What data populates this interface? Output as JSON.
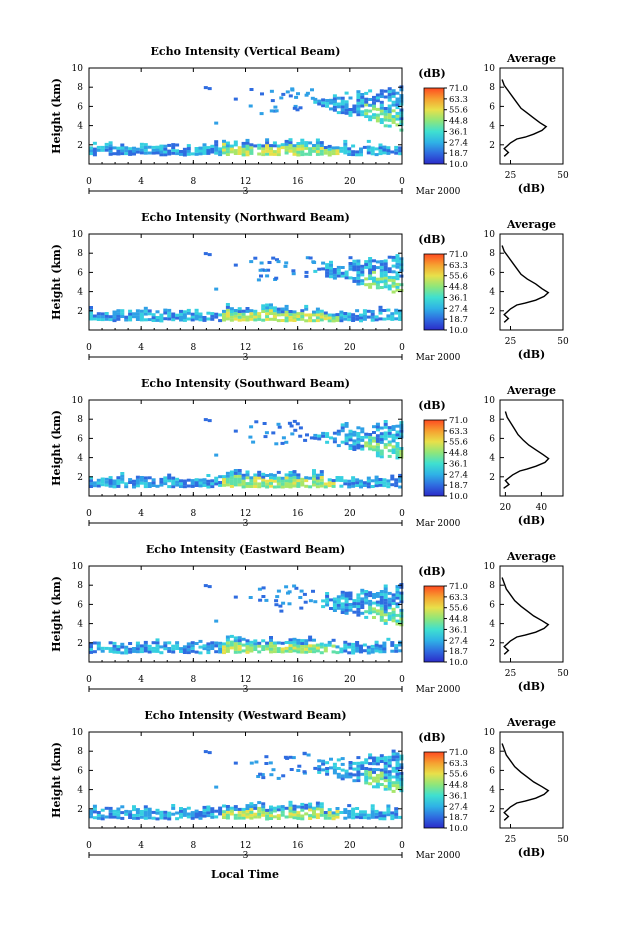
{
  "colorbar": {
    "unit": "(dB)",
    "ticks": [
      "71.0",
      "63.3",
      "55.6",
      "44.8",
      "36.1",
      "27.4",
      "18.7",
      "10.0"
    ],
    "stops": [
      "#2b2bc8",
      "#2f6ce0",
      "#2fb3e6",
      "#3fe0d0",
      "#8fe67a",
      "#e8e04a",
      "#f6a030",
      "#ff4a20"
    ]
  },
  "chart_data": [
    {
      "type": "heatmap",
      "title": "Echo Intensity (Vertical Beam)",
      "ylabel": "Height (km)",
      "xticks": [
        "0",
        "4",
        "8",
        "12",
        "16",
        "20",
        "0"
      ],
      "yticks": [
        "2",
        "4",
        "6",
        "8",
        "10"
      ],
      "xlim": [
        0,
        24
      ],
      "ylim": [
        0,
        10
      ],
      "date_center": "3",
      "date_label": "Mar 2000",
      "profile": {
        "title": "Average",
        "xlabel": "(dB)",
        "xticks": [
          "25",
          "50"
        ],
        "xlim": [
          20,
          50
        ],
        "points": [
          [
            22,
            0.8
          ],
          [
            24,
            1.2
          ],
          [
            22,
            1.6
          ],
          [
            25,
            2.2
          ],
          [
            28,
            2.6
          ],
          [
            32,
            2.8
          ],
          [
            36,
            3.1
          ],
          [
            40,
            3.5
          ],
          [
            42,
            3.9
          ],
          [
            39,
            4.3
          ],
          [
            36,
            4.8
          ],
          [
            33,
            5.3
          ],
          [
            30,
            5.8
          ],
          [
            28,
            6.4
          ],
          [
            26,
            7.0
          ],
          [
            24,
            7.6
          ],
          [
            22,
            8.2
          ],
          [
            21,
            8.8
          ]
        ]
      }
    },
    {
      "type": "heatmap",
      "title": "Echo Intensity (Northward Beam)",
      "ylabel": "Height (km)",
      "xticks": [
        "0",
        "4",
        "8",
        "12",
        "16",
        "20",
        "0"
      ],
      "yticks": [
        "2",
        "4",
        "6",
        "8",
        "10"
      ],
      "xlim": [
        0,
        24
      ],
      "ylim": [
        0,
        10
      ],
      "date_center": "3",
      "date_label": "Mar 2000",
      "profile": {
        "title": "Average",
        "xlabel": "(dB)",
        "xticks": [
          "25",
          "50"
        ],
        "xlim": [
          20,
          50
        ],
        "points": [
          [
            22,
            0.8
          ],
          [
            24,
            1.2
          ],
          [
            22,
            1.6
          ],
          [
            25,
            2.2
          ],
          [
            28,
            2.6
          ],
          [
            32,
            2.8
          ],
          [
            37,
            3.1
          ],
          [
            41,
            3.5
          ],
          [
            43,
            3.9
          ],
          [
            40,
            4.3
          ],
          [
            37,
            4.8
          ],
          [
            33,
            5.3
          ],
          [
            30,
            5.8
          ],
          [
            28,
            6.4
          ],
          [
            26,
            7.0
          ],
          [
            24,
            7.6
          ],
          [
            22,
            8.2
          ],
          [
            21,
            8.8
          ]
        ]
      }
    },
    {
      "type": "heatmap",
      "title": "Echo Intensity (Southward Beam)",
      "ylabel": "Height (km)",
      "xticks": [
        "0",
        "4",
        "8",
        "12",
        "16",
        "20",
        "0"
      ],
      "yticks": [
        "2",
        "4",
        "6",
        "8",
        "10"
      ],
      "xlim": [
        0,
        24
      ],
      "ylim": [
        0,
        10
      ],
      "date_center": "3",
      "date_label": "Mar 2000",
      "profile": {
        "title": "Average",
        "xlabel": "(dB)",
        "xticks": [
          "20",
          "40"
        ],
        "xlim": [
          17,
          52
        ],
        "points": [
          [
            19,
            0.8
          ],
          [
            22,
            1.2
          ],
          [
            20,
            1.6
          ],
          [
            24,
            2.2
          ],
          [
            28,
            2.6
          ],
          [
            32,
            2.8
          ],
          [
            37,
            3.1
          ],
          [
            42,
            3.5
          ],
          [
            44,
            3.9
          ],
          [
            41,
            4.3
          ],
          [
            37,
            4.8
          ],
          [
            33,
            5.3
          ],
          [
            30,
            5.8
          ],
          [
            27,
            6.4
          ],
          [
            25,
            7.0
          ],
          [
            23,
            7.6
          ],
          [
            21,
            8.2
          ],
          [
            20,
            8.8
          ]
        ]
      }
    },
    {
      "type": "heatmap",
      "title": "Echo Intensity (Eastward Beam)",
      "ylabel": "Height (km)",
      "xticks": [
        "0",
        "4",
        "8",
        "12",
        "16",
        "20",
        "0"
      ],
      "yticks": [
        "2",
        "4",
        "6",
        "8",
        "10"
      ],
      "xlim": [
        0,
        24
      ],
      "ylim": [
        0,
        10
      ],
      "date_center": "3",
      "date_label": "Mar 2000",
      "profile": {
        "title": "Average",
        "xlabel": "(dB)",
        "xticks": [
          "25",
          "50"
        ],
        "xlim": [
          20,
          50
        ],
        "points": [
          [
            22,
            0.8
          ],
          [
            24,
            1.2
          ],
          [
            22,
            1.6
          ],
          [
            25,
            2.2
          ],
          [
            28,
            2.6
          ],
          [
            32,
            2.8
          ],
          [
            37,
            3.1
          ],
          [
            41,
            3.5
          ],
          [
            43,
            3.9
          ],
          [
            40,
            4.3
          ],
          [
            36,
            4.8
          ],
          [
            33,
            5.3
          ],
          [
            30,
            5.8
          ],
          [
            27,
            6.4
          ],
          [
            25,
            7.0
          ],
          [
            23,
            7.6
          ],
          [
            22,
            8.2
          ],
          [
            21,
            8.8
          ]
        ]
      }
    },
    {
      "type": "heatmap",
      "title": "Echo Intensity (Westward Beam)",
      "ylabel": "Height (km)",
      "xticks": [
        "0",
        "4",
        "8",
        "12",
        "16",
        "20",
        "0"
      ],
      "yticks": [
        "2",
        "4",
        "6",
        "8",
        "10"
      ],
      "xlim": [
        0,
        24
      ],
      "ylim": [
        0,
        10
      ],
      "date_center": "3",
      "date_label": "Mar 2000",
      "profile": {
        "title": "Average",
        "xlabel": "(dB)",
        "xticks": [
          "25",
          "50"
        ],
        "xlim": [
          20,
          50
        ],
        "points": [
          [
            22,
            0.8
          ],
          [
            24,
            1.2
          ],
          [
            22,
            1.6
          ],
          [
            25,
            2.2
          ],
          [
            28,
            2.6
          ],
          [
            32,
            2.8
          ],
          [
            37,
            3.1
          ],
          [
            41,
            3.5
          ],
          [
            43,
            3.9
          ],
          [
            40,
            4.3
          ],
          [
            36,
            4.8
          ],
          [
            33,
            5.3
          ],
          [
            30,
            5.8
          ],
          [
            27,
            6.4
          ],
          [
            25,
            7.0
          ],
          [
            23,
            7.6
          ],
          [
            22,
            8.2
          ],
          [
            21,
            8.8
          ]
        ]
      }
    }
  ],
  "xlabel_bottom": "Local Time"
}
